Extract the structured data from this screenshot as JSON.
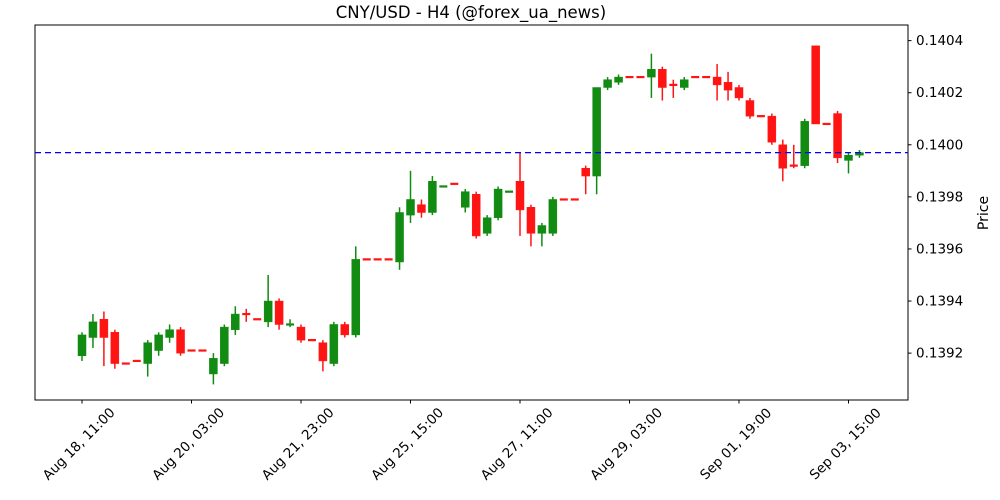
{
  "figure": {
    "title": "CNY/USD - H4 (@forex_ua_news)"
  },
  "chart_data": {
    "type": "candlestick",
    "title": "CNY/USD - H4 (@forex_ua_news)",
    "symbol": "CNY/USD",
    "timeframe": "H4",
    "source_handle": "@forex_ua_news",
    "ylabel": "Price",
    "grid": false,
    "ylim": [
      0.13902,
      0.14046
    ],
    "y_ticks": [
      0.1392,
      0.1394,
      0.1396,
      0.1398,
      0.14,
      0.1402,
      0.1404
    ],
    "y_tick_labels": [
      "0.1392",
      "0.1394",
      "0.1396",
      "0.1398",
      "0.1400",
      "0.1402",
      "0.1404"
    ],
    "x_ticks": [
      [
        0,
        "Aug 18, 11:00"
      ],
      [
        10,
        "Aug 20, 03:00"
      ],
      [
        20,
        "Aug 21, 23:00"
      ],
      [
        30,
        "Aug 25, 15:00"
      ],
      [
        40,
        "Aug 27, 11:00"
      ],
      [
        50,
        "Aug 29, 03:00"
      ],
      [
        60,
        "Sep 01, 19:00"
      ],
      [
        70,
        "Sep 03, 15:00"
      ]
    ],
    "hline": {
      "value": 0.13997,
      "color": "#0000ff",
      "style": "dashed"
    },
    "up_color": "#118b11",
    "down_color": "#ff1414",
    "axis_color": "#000000",
    "ohlc": [
      [
        0.13919,
        0.13928,
        0.13917,
        0.13927,
        "u"
      ],
      [
        0.13926,
        0.13935,
        0.13922,
        0.13932,
        "u"
      ],
      [
        0.13933,
        0.13936,
        0.13915,
        0.13926,
        "d"
      ],
      [
        0.13928,
        0.13929,
        0.13914,
        0.13916,
        "d"
      ],
      [
        0.13916,
        0.13916,
        0.13916,
        0.13916,
        "d"
      ],
      [
        0.13917,
        0.13917,
        0.13917,
        0.13917,
        "d"
      ],
      [
        0.13916,
        0.13925,
        0.13911,
        0.13924,
        "u"
      ],
      [
        0.13921,
        0.13928,
        0.13919,
        0.13927,
        "u"
      ],
      [
        0.13926,
        0.13931,
        0.13924,
        0.13929,
        "u"
      ],
      [
        0.13929,
        0.1393,
        0.13919,
        0.1392,
        "d"
      ],
      [
        0.13921,
        0.13921,
        0.13921,
        0.13921,
        "d"
      ],
      [
        0.13921,
        0.13921,
        0.13921,
        0.13921,
        "d"
      ],
      [
        0.13912,
        0.1392,
        0.13908,
        0.13918,
        "u"
      ],
      [
        0.13916,
        0.13931,
        0.13915,
        0.1393,
        "u"
      ],
      [
        0.13929,
        0.13938,
        0.13927,
        0.13935,
        "u"
      ],
      [
        0.13935,
        0.13937,
        0.13932,
        0.13935,
        "d"
      ],
      [
        0.13933,
        0.13933,
        0.13933,
        0.13933,
        "d"
      ],
      [
        0.13932,
        0.1395,
        0.1393,
        0.1394,
        "u"
      ],
      [
        0.1394,
        0.13941,
        0.13929,
        0.13931,
        "d"
      ],
      [
        0.13931,
        0.13933,
        0.1393,
        0.13931,
        "u"
      ],
      [
        0.1393,
        0.13931,
        0.13924,
        0.13925,
        "d"
      ],
      [
        0.13925,
        0.13925,
        0.13925,
        0.13925,
        "d"
      ],
      [
        0.13924,
        0.13925,
        0.13913,
        0.13917,
        "d"
      ],
      [
        0.13916,
        0.13932,
        0.13915,
        0.13931,
        "u"
      ],
      [
        0.13931,
        0.13932,
        0.13926,
        0.13927,
        "d"
      ],
      [
        0.13927,
        0.13961,
        0.13926,
        0.13956,
        "u"
      ],
      [
        0.13956,
        0.13956,
        0.13956,
        0.13956,
        "d"
      ],
      [
        0.13956,
        0.13956,
        0.13956,
        0.13956,
        "d"
      ],
      [
        0.13956,
        0.13956,
        0.13956,
        0.13956,
        "d"
      ],
      [
        0.13955,
        0.13976,
        0.13952,
        0.13974,
        "u"
      ],
      [
        0.13973,
        0.1399,
        0.1397,
        0.13979,
        "u"
      ],
      [
        0.13977,
        0.13979,
        0.13972,
        0.13974,
        "d"
      ],
      [
        0.13974,
        0.13988,
        0.13973,
        0.13986,
        "u"
      ],
      [
        0.13984,
        0.13984,
        0.13984,
        0.13984,
        "u"
      ],
      [
        0.13985,
        0.13985,
        0.13985,
        0.13985,
        "d"
      ],
      [
        0.13976,
        0.13983,
        0.13974,
        0.13982,
        "u"
      ],
      [
        0.13981,
        0.13982,
        0.13964,
        0.13965,
        "d"
      ],
      [
        0.13966,
        0.13973,
        0.13965,
        0.13972,
        "u"
      ],
      [
        0.13972,
        0.13984,
        0.13971,
        0.13983,
        "u"
      ],
      [
        0.13982,
        0.13982,
        0.13982,
        0.13982,
        "u"
      ],
      [
        0.13986,
        0.13997,
        0.13965,
        0.13975,
        "d"
      ],
      [
        0.13976,
        0.13977,
        0.13961,
        0.13966,
        "d"
      ],
      [
        0.13966,
        0.1397,
        0.13961,
        0.13969,
        "u"
      ],
      [
        0.13966,
        0.1398,
        0.13965,
        0.13979,
        "u"
      ],
      [
        0.13979,
        0.13979,
        0.13979,
        0.13979,
        "d"
      ],
      [
        0.13979,
        0.13979,
        0.13979,
        0.13979,
        "d"
      ],
      [
        0.13991,
        0.13992,
        0.13981,
        0.13988,
        "d"
      ],
      [
        0.13988,
        0.14022,
        0.13981,
        0.14022,
        "u"
      ],
      [
        0.14022,
        0.14026,
        0.14021,
        0.14025,
        "u"
      ],
      [
        0.14024,
        0.14027,
        0.14023,
        0.14026,
        "u"
      ],
      [
        0.14026,
        0.14026,
        0.14026,
        0.14026,
        "d"
      ],
      [
        0.14026,
        0.14026,
        0.14026,
        0.14026,
        "d"
      ],
      [
        0.14026,
        0.14035,
        0.14018,
        0.14029,
        "u"
      ],
      [
        0.14029,
        0.1403,
        0.14017,
        0.14022,
        "d"
      ],
      [
        0.14023,
        0.14025,
        0.14018,
        0.14023,
        "d"
      ],
      [
        0.14022,
        0.14026,
        0.14021,
        0.14025,
        "u"
      ],
      [
        0.14026,
        0.14026,
        0.14026,
        0.14026,
        "d"
      ],
      [
        0.14026,
        0.14026,
        0.14026,
        0.14026,
        "d"
      ],
      [
        0.14026,
        0.14031,
        0.14017,
        0.14023,
        "d"
      ],
      [
        0.14024,
        0.14028,
        0.14017,
        0.14021,
        "d"
      ],
      [
        0.14022,
        0.14023,
        0.14017,
        0.14018,
        "d"
      ],
      [
        0.14017,
        0.14018,
        0.1401,
        0.14011,
        "d"
      ],
      [
        0.14011,
        0.14011,
        0.14011,
        0.14011,
        "d"
      ],
      [
        0.14011,
        0.14012,
        0.14,
        0.14001,
        "d"
      ],
      [
        0.14,
        0.14002,
        0.13986,
        0.13991,
        "d"
      ],
      [
        0.13992,
        0.14,
        0.13991,
        0.13992,
        "d"
      ],
      [
        0.13992,
        0.1401,
        0.13991,
        0.14009,
        "u"
      ],
      [
        0.14038,
        0.14038,
        0.14008,
        0.14008,
        "d"
      ],
      [
        0.14008,
        0.14008,
        0.14008,
        0.14008,
        "d"
      ],
      [
        0.14012,
        0.14013,
        0.13993,
        0.13995,
        "d"
      ],
      [
        0.13994,
        0.13997,
        0.13989,
        0.13996,
        "u"
      ],
      [
        0.13996,
        0.13998,
        0.13995,
        0.13997,
        "u"
      ]
    ]
  }
}
